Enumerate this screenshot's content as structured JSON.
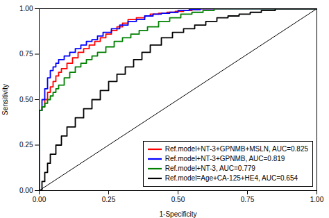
{
  "chart_data": {
    "type": "line",
    "xlabel": "1-Specificity",
    "ylabel": "Sensitivity",
    "xlim": [
      0.0,
      1.0
    ],
    "ylim": [
      0.0,
      1.0
    ],
    "xticks": [
      {
        "value": 0.0,
        "label": "0.00"
      },
      {
        "value": 0.25,
        "label": "0.25"
      },
      {
        "value": 0.5,
        "label": "0.50"
      },
      {
        "value": 0.75,
        "label": "0.75"
      },
      {
        "value": 1.0,
        "label": "1.00"
      }
    ],
    "yticks": [
      {
        "value": 0.0,
        "label": "0.00"
      },
      {
        "value": 0.25,
        "label": "0.25"
      },
      {
        "value": 0.5,
        "label": "0.50"
      },
      {
        "value": 0.75,
        "label": "0.75"
      },
      {
        "value": 1.0,
        "label": "1.00"
      }
    ],
    "legend": "lower right",
    "reference_line": {
      "color": "#000000",
      "x": [
        0,
        1
      ],
      "values": [
        0,
        1
      ]
    },
    "series": [
      {
        "name": "Ref.model+NT-3+GPNMB+MSLN, AUC=0.825",
        "color": "#FF0000",
        "x": [
          0.0,
          0.0,
          0.01,
          0.01,
          0.02,
          0.02,
          0.03,
          0.03,
          0.04,
          0.04,
          0.05,
          0.05,
          0.06,
          0.06,
          0.07,
          0.07,
          0.08,
          0.08,
          0.1,
          0.1,
          0.12,
          0.12,
          0.14,
          0.14,
          0.16,
          0.16,
          0.18,
          0.18,
          0.2,
          0.2,
          0.22,
          0.22,
          0.24,
          0.24,
          0.26,
          0.26,
          0.28,
          0.28,
          0.3,
          0.3,
          0.32,
          0.32,
          0.35,
          0.35,
          0.38,
          0.38,
          0.4,
          0.4,
          0.43,
          0.43,
          0.46,
          0.46,
          0.49,
          0.49,
          0.52,
          0.52,
          0.55,
          0.55,
          0.58,
          0.58,
          0.62,
          0.62,
          0.66,
          0.66,
          0.7,
          0.7,
          0.75,
          0.75,
          0.8,
          0.8,
          0.85,
          0.85,
          0.9,
          0.9,
          1.0
        ],
        "values": [
          0.0,
          0.44,
          0.44,
          0.46,
          0.46,
          0.5,
          0.5,
          0.54,
          0.54,
          0.57,
          0.57,
          0.6,
          0.6,
          0.63,
          0.63,
          0.65,
          0.65,
          0.67,
          0.67,
          0.7,
          0.7,
          0.73,
          0.73,
          0.76,
          0.76,
          0.78,
          0.78,
          0.8,
          0.8,
          0.82,
          0.82,
          0.84,
          0.84,
          0.86,
          0.86,
          0.88,
          0.88,
          0.9,
          0.9,
          0.92,
          0.92,
          0.94,
          0.94,
          0.95,
          0.95,
          0.96,
          0.96,
          0.97,
          0.97,
          0.975,
          0.975,
          0.98,
          0.98,
          0.985,
          0.985,
          0.99,
          0.99,
          0.995,
          0.995,
          1.0,
          1.0,
          1.0,
          1.0,
          1.0,
          1.0,
          1.0,
          1.0,
          1.0,
          1.0,
          1.0,
          1.0,
          1.0,
          1.0,
          1.0,
          1.0
        ]
      },
      {
        "name": "Ref.model+NT-3+GPNMB, AUC=0.819",
        "color": "#0000FF",
        "x": [
          0.0,
          0.0,
          0.01,
          0.01,
          0.02,
          0.02,
          0.03,
          0.03,
          0.04,
          0.04,
          0.05,
          0.05,
          0.06,
          0.06,
          0.07,
          0.07,
          0.09,
          0.09,
          0.11,
          0.11,
          0.13,
          0.13,
          0.15,
          0.15,
          0.17,
          0.17,
          0.19,
          0.19,
          0.21,
          0.21,
          0.23,
          0.23,
          0.26,
          0.26,
          0.29,
          0.29,
          0.32,
          0.32,
          0.35,
          0.35,
          0.38,
          0.38,
          0.41,
          0.41,
          0.44,
          0.44,
          0.47,
          0.47,
          0.5,
          0.5,
          0.54,
          0.54,
          0.58,
          0.58,
          0.62,
          0.62,
          0.66,
          0.66,
          0.7,
          0.7,
          0.75,
          0.75,
          0.8,
          0.8,
          0.85,
          0.85,
          0.9,
          0.9,
          1.0
        ],
        "values": [
          0.0,
          0.44,
          0.44,
          0.5,
          0.5,
          0.56,
          0.56,
          0.62,
          0.62,
          0.66,
          0.66,
          0.68,
          0.68,
          0.7,
          0.7,
          0.72,
          0.72,
          0.74,
          0.74,
          0.76,
          0.76,
          0.78,
          0.78,
          0.8,
          0.8,
          0.82,
          0.82,
          0.83,
          0.83,
          0.85,
          0.85,
          0.87,
          0.87,
          0.89,
          0.89,
          0.91,
          0.91,
          0.93,
          0.93,
          0.94,
          0.94,
          0.96,
          0.96,
          0.97,
          0.97,
          0.975,
          0.975,
          0.98,
          0.98,
          0.99,
          0.99,
          0.995,
          0.995,
          1.0,
          1.0,
          1.0,
          1.0,
          1.0,
          1.0,
          1.0,
          1.0,
          1.0,
          1.0,
          1.0,
          1.0,
          1.0,
          1.0,
          1.0,
          1.0
        ]
      },
      {
        "name": "Ref.model+NT-3, AUC=0.779",
        "color": "#008000",
        "x": [
          0.0,
          0.0,
          0.01,
          0.01,
          0.02,
          0.02,
          0.03,
          0.03,
          0.04,
          0.04,
          0.05,
          0.05,
          0.06,
          0.06,
          0.07,
          0.07,
          0.09,
          0.09,
          0.11,
          0.11,
          0.13,
          0.13,
          0.15,
          0.15,
          0.17,
          0.17,
          0.19,
          0.19,
          0.21,
          0.21,
          0.24,
          0.24,
          0.27,
          0.27,
          0.3,
          0.3,
          0.33,
          0.33,
          0.36,
          0.36,
          0.39,
          0.39,
          0.43,
          0.43,
          0.47,
          0.47,
          0.51,
          0.51,
          0.55,
          0.55,
          0.59,
          0.59,
          0.63,
          0.63,
          0.67,
          0.67,
          0.72,
          0.72,
          0.77,
          0.77,
          0.82,
          0.82,
          0.87,
          0.87,
          0.92,
          0.92,
          1.0
        ],
        "values": [
          0.0,
          0.44,
          0.44,
          0.46,
          0.46,
          0.48,
          0.48,
          0.5,
          0.5,
          0.52,
          0.52,
          0.54,
          0.54,
          0.56,
          0.56,
          0.58,
          0.58,
          0.62,
          0.62,
          0.65,
          0.65,
          0.68,
          0.68,
          0.7,
          0.7,
          0.72,
          0.72,
          0.74,
          0.74,
          0.76,
          0.76,
          0.79,
          0.79,
          0.82,
          0.82,
          0.84,
          0.84,
          0.86,
          0.86,
          0.88,
          0.88,
          0.9,
          0.9,
          0.93,
          0.93,
          0.95,
          0.95,
          0.97,
          0.97,
          0.98,
          0.98,
          0.99,
          0.99,
          1.0,
          1.0,
          1.0,
          1.0,
          1.0,
          1.0,
          1.0,
          1.0,
          1.0,
          1.0,
          1.0,
          1.0,
          1.0,
          1.0
        ]
      },
      {
        "name": "Ref.model=Age+CA-125+HE4, AUC=0.654",
        "color": "#000000",
        "x": [
          0.0,
          0.0,
          0.01,
          0.01,
          0.02,
          0.02,
          0.03,
          0.03,
          0.04,
          0.04,
          0.06,
          0.06,
          0.08,
          0.08,
          0.1,
          0.1,
          0.13,
          0.13,
          0.16,
          0.16,
          0.19,
          0.19,
          0.22,
          0.22,
          0.25,
          0.25,
          0.28,
          0.28,
          0.31,
          0.31,
          0.34,
          0.34,
          0.37,
          0.37,
          0.4,
          0.4,
          0.44,
          0.44,
          0.48,
          0.48,
          0.52,
          0.52,
          0.56,
          0.56,
          0.6,
          0.6,
          0.64,
          0.64,
          0.68,
          0.68,
          0.72,
          0.72,
          0.76,
          0.76,
          0.8,
          0.8,
          0.85,
          0.85,
          0.9,
          0.9,
          1.0
        ],
        "values": [
          0.0,
          0.0,
          0.0,
          0.05,
          0.05,
          0.1,
          0.1,
          0.15,
          0.15,
          0.2,
          0.2,
          0.25,
          0.25,
          0.3,
          0.3,
          0.35,
          0.35,
          0.4,
          0.4,
          0.45,
          0.45,
          0.5,
          0.5,
          0.55,
          0.55,
          0.6,
          0.6,
          0.64,
          0.64,
          0.68,
          0.68,
          0.72,
          0.72,
          0.76,
          0.76,
          0.8,
          0.8,
          0.84,
          0.84,
          0.87,
          0.87,
          0.89,
          0.89,
          0.91,
          0.91,
          0.93,
          0.93,
          0.95,
          0.95,
          0.96,
          0.96,
          0.97,
          0.97,
          0.98,
          0.98,
          0.99,
          0.99,
          1.0,
          1.0,
          1.0,
          1.0
        ]
      }
    ]
  }
}
